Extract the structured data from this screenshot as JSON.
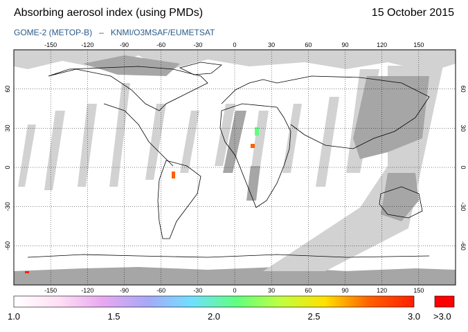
{
  "header": {
    "title": "Absorbing aerosol index (using PMDs)",
    "date": "15 October 2015",
    "instrument": "GOME-2 (METOP-B)",
    "separator": "–",
    "source": "KNMI/O3MSAF/EUMETSAT"
  },
  "map": {
    "projection": "equirectangular",
    "lon_range": [
      -180,
      180
    ],
    "lat_range": [
      -90,
      90
    ],
    "lon_ticks": [
      "-150",
      "-120",
      "-90",
      "-60",
      "-30",
      "0",
      "30",
      "60",
      "90",
      "120",
      "150"
    ],
    "lat_ticks_left": [
      "60",
      "30",
      "0",
      "-30",
      "-60"
    ],
    "lat_ticks_right": [
      "60",
      "30",
      "0",
      "-30",
      "-60"
    ],
    "colors": {
      "ocean_land": "#ffffff",
      "no_data_light": "#d2d2d2",
      "no_data_dark": "#a6a6a6",
      "coastline": "#000000",
      "grid": "#000000"
    }
  },
  "colorbar": {
    "min": 1.0,
    "max": 3.0,
    "labels": [
      "1.0",
      "1.5",
      "2.0",
      "2.5",
      "3.0"
    ],
    "overflow_label": ">3.0",
    "overflow_color": "#ff0000",
    "gradient": [
      "#ffffff",
      "#ffe0f5",
      "#e8a8f0",
      "#a8a8f8",
      "#70e0ff",
      "#60ff80",
      "#c0ff40",
      "#ffe000",
      "#ff6000",
      "#ff2000"
    ]
  }
}
